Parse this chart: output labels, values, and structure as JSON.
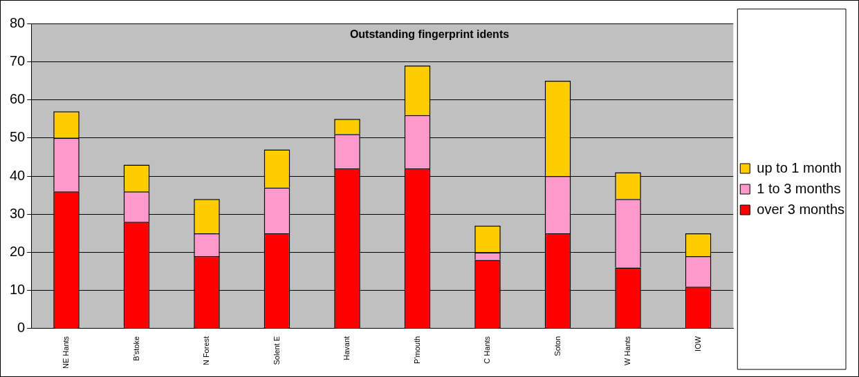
{
  "chart_data": {
    "type": "bar",
    "title": "Outstanding fingerprint idents",
    "stacked": true,
    "categories": [
      "NE Hants",
      "B'stoke",
      "N Forest",
      "Solent E",
      "Havant",
      "P'mouth",
      "C Hants",
      "Soton",
      "W Hants",
      "IOW"
    ],
    "series": [
      {
        "name": "over 3 months",
        "color": "#ff0000",
        "values": [
          36,
          28,
          19,
          25,
          42,
          42,
          18,
          25,
          16,
          11
        ]
      },
      {
        "name": "1 to 3 months",
        "color": "#ff99cc",
        "values": [
          14,
          8,
          6,
          12,
          9,
          14,
          2,
          15,
          18,
          8
        ]
      },
      {
        "name": "up to 1 month",
        "color": "#ffcc00",
        "values": [
          7,
          7,
          9,
          10,
          4,
          13,
          7,
          25,
          7,
          6
        ]
      }
    ],
    "ylim": [
      0,
      80
    ],
    "yticks": [
      0,
      10,
      20,
      30,
      40,
      50,
      60,
      70,
      80
    ],
    "grid": "y",
    "legend": "right"
  }
}
